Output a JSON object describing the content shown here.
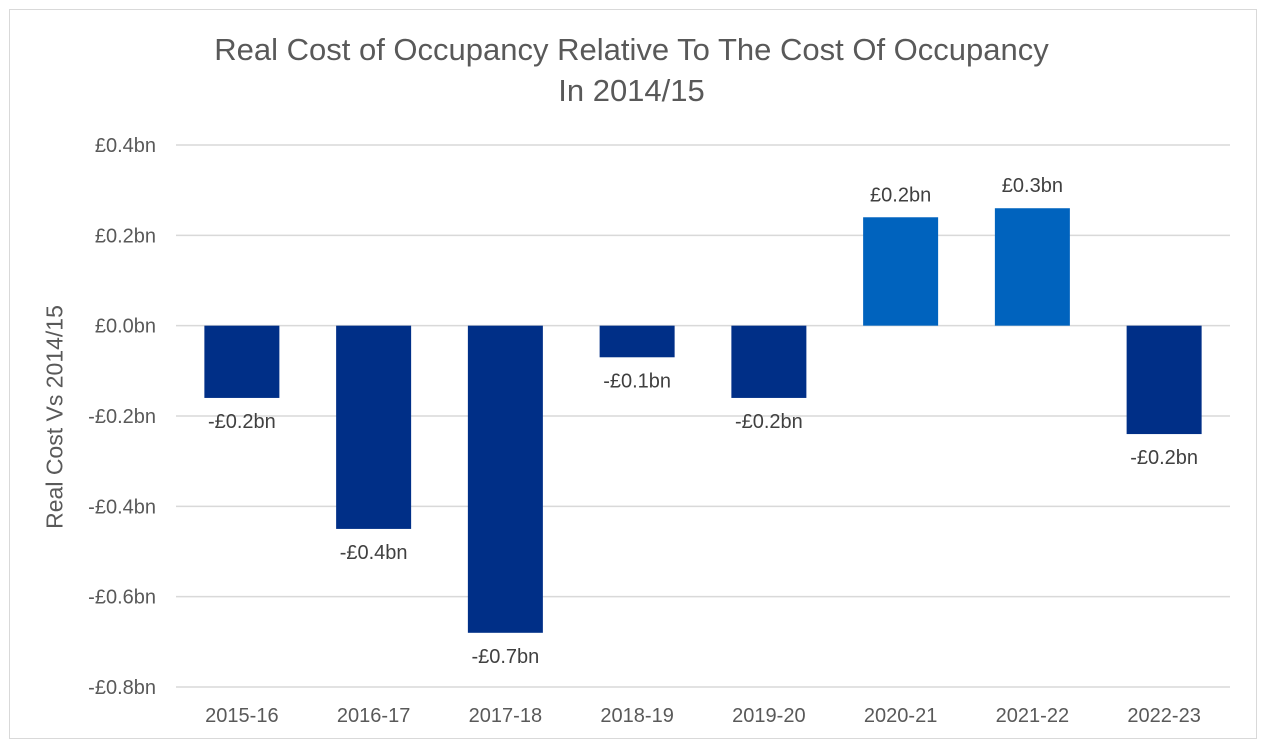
{
  "chart_data": {
    "type": "bar",
    "title": [
      "Real Cost of Occupancy Relative To The Cost Of Occupancy",
      "In 2014/15"
    ],
    "xlabel": "",
    "ylabel": "Real Cost Vs 2014/15",
    "unit": "£bn",
    "ylim": [
      -0.8,
      0.4
    ],
    "yticks": [
      0.4,
      0.2,
      0.0,
      -0.2,
      -0.4,
      -0.6,
      -0.8
    ],
    "ytick_labels": [
      "£0.4bn",
      "£0.2bn",
      "£0.0bn",
      "-£0.2bn",
      "-£0.4bn",
      "-£0.6bn",
      "-£0.8bn"
    ],
    "grid": true,
    "categories": [
      "2015-16",
      "2016-17",
      "2017-18",
      "2018-19",
      "2019-20",
      "2020-21",
      "2021-22",
      "2022-23"
    ],
    "values": [
      -0.16,
      -0.45,
      -0.68,
      -0.07,
      -0.16,
      0.24,
      0.26,
      -0.24
    ],
    "data_labels": [
      "-£0.2bn",
      "-£0.4bn",
      "-£0.7bn",
      "-£0.1bn",
      "-£0.2bn",
      "£0.2bn",
      "£0.3bn",
      "-£0.2bn"
    ],
    "colors": {
      "negative": "#002f87",
      "positive": "#0063be",
      "grid": "#d9d9d9",
      "text": "#595959",
      "label": "#404040"
    }
  }
}
